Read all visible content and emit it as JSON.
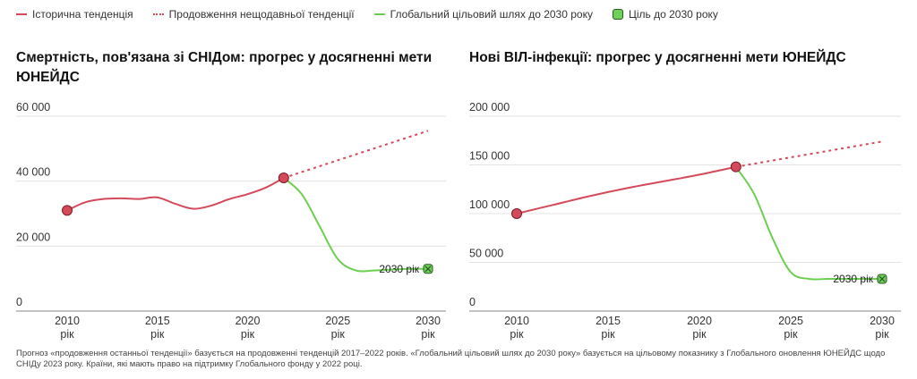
{
  "legend": {
    "historical": "Історична тенденція",
    "continuation": "Продовження нещодавньої тенденції",
    "target_path": "Глобальний цільовий шлях до 2030 року",
    "target": "Ціль до 2030 року"
  },
  "colors": {
    "historical": "#d44a5a",
    "target_path": "#6ccf4f",
    "grid": "#e3e3e3",
    "axis": "#888888"
  },
  "chart_data": [
    {
      "type": "line",
      "title": "Смертність, пов'язана зі СНІДом: прогрес у досягненні мети ЮНЕЙДС",
      "ylim": [
        0,
        60000
      ],
      "yticks": [
        0,
        20000,
        40000,
        60000
      ],
      "ytick_labels": [
        "0",
        "20 000",
        "40 000",
        "60 000"
      ],
      "xlim": [
        2010,
        2030
      ],
      "xticks": [
        2010,
        2015,
        2020,
        2025,
        2030
      ],
      "xtick_suffix": "рік",
      "target_label": "2030 рік",
      "series": [
        {
          "name": "Історична тенденція",
          "x": [
            2010,
            2011,
            2012,
            2013,
            2014,
            2015,
            2016,
            2017,
            2018,
            2019,
            2020,
            2021,
            2022
          ],
          "y": [
            31000,
            33500,
            34500,
            34700,
            34500,
            35000,
            33000,
            31500,
            32500,
            34500,
            36000,
            38000,
            41000
          ]
        },
        {
          "name": "Продовження нещодавньої тенденції",
          "x": [
            2022,
            2030
          ],
          "y": [
            41000,
            55500
          ]
        },
        {
          "name": "Глобальний цільовий шлях до 2030 року",
          "x": [
            2022,
            2023,
            2024,
            2025,
            2026,
            2027,
            2028,
            2029,
            2030
          ],
          "y": [
            41000,
            36000,
            26000,
            16000,
            12500,
            12500,
            12800,
            13000,
            13000
          ]
        },
        {
          "name": "Ціль до 2030 року",
          "x": [
            2030
          ],
          "y": [
            13000
          ]
        }
      ]
    },
    {
      "type": "line",
      "title": "Нові ВІЛ-інфекції: прогрес у досягненні мети ЮНЕЙДС",
      "ylim": [
        0,
        200000
      ],
      "yticks": [
        0,
        50000,
        100000,
        150000,
        200000
      ],
      "ytick_labels": [
        "0",
        "50 000",
        "100 000",
        "150 000",
        "200 000"
      ],
      "xlim": [
        2010,
        2030
      ],
      "xticks": [
        2010,
        2015,
        2020,
        2025,
        2030
      ],
      "xtick_suffix": "рік",
      "target_label": "2030 рік",
      "series": [
        {
          "name": "Історична тенденція",
          "x": [
            2010,
            2012,
            2014,
            2016,
            2018,
            2020,
            2022
          ],
          "y": [
            100000,
            109000,
            118000,
            126000,
            133000,
            140000,
            148000
          ]
        },
        {
          "name": "Продовження нещодавньої тенденції",
          "x": [
            2022,
            2030
          ],
          "y": [
            148000,
            174000
          ]
        },
        {
          "name": "Глобальний цільовий шлях до 2030 року",
          "x": [
            2022,
            2023,
            2024,
            2025,
            2026,
            2027,
            2028,
            2029,
            2030
          ],
          "y": [
            148000,
            120000,
            75000,
            40000,
            33000,
            33000,
            33000,
            33000,
            33000
          ]
        },
        {
          "name": "Ціль до 2030 року",
          "x": [
            2030
          ],
          "y": [
            33000
          ]
        }
      ]
    }
  ],
  "footnote": "Прогноз «продовження останньої тенденції» базується на продовженні тенденцій 2017–2022 років. «Глобальний цільовий шлях до 2030 року» базується на цільовому показнику з Глобального оновлення ЮНЕЙДС щодо СНІДу 2023 року. Країни, які мають право на підтримку Глобального фонду у 2022 році."
}
